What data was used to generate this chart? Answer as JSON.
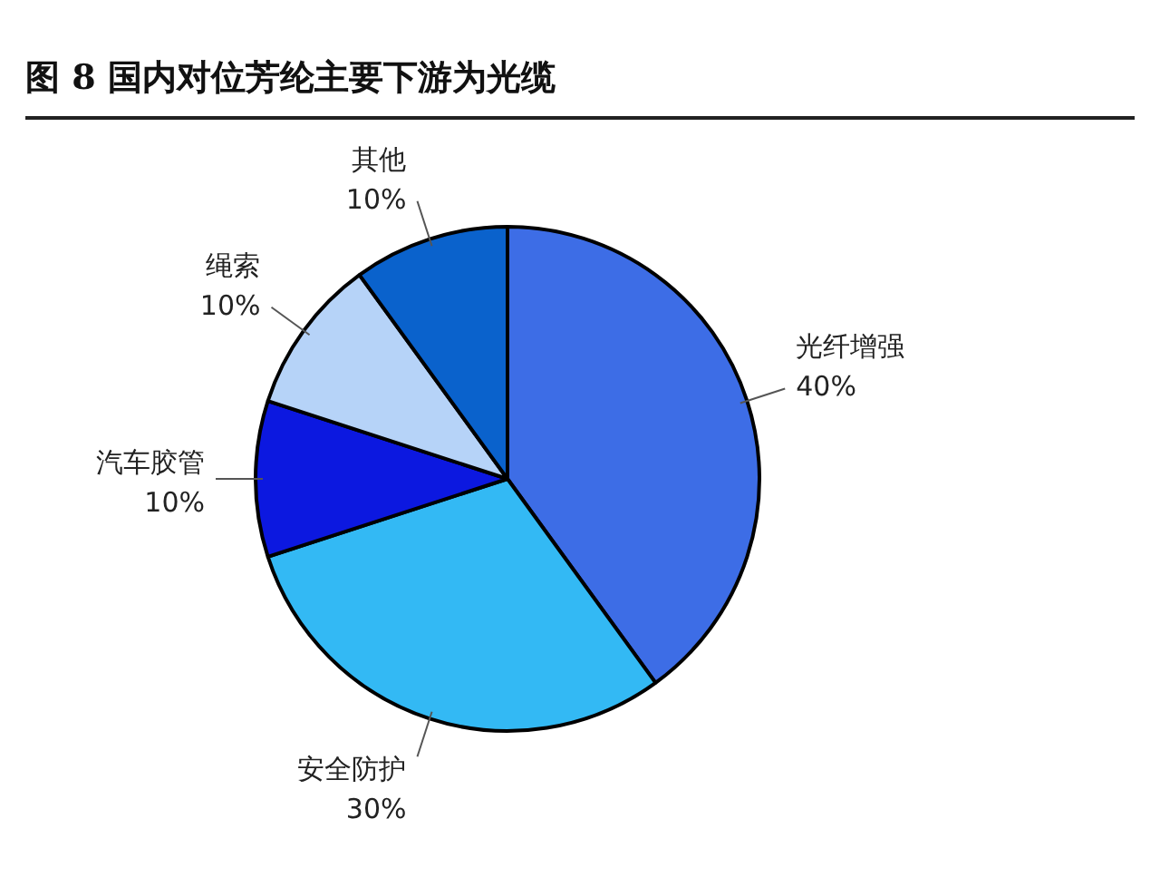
{
  "chart_data": {
    "type": "pie",
    "title": "图 8 国内对位芳纶主要下游为光缆",
    "categories": [
      "光纤增强",
      "安全防护",
      "汽车胶管",
      "绳索",
      "其他"
    ],
    "values": [
      40,
      30,
      10,
      10,
      10
    ],
    "value_labels": [
      "40%",
      "30%",
      "10%",
      "10%",
      "10%"
    ],
    "colors": [
      "#3d6de6",
      "#33b9f4",
      "#0c18e0",
      "#b6d3f8",
      "#0a62cc"
    ],
    "legend": false
  }
}
